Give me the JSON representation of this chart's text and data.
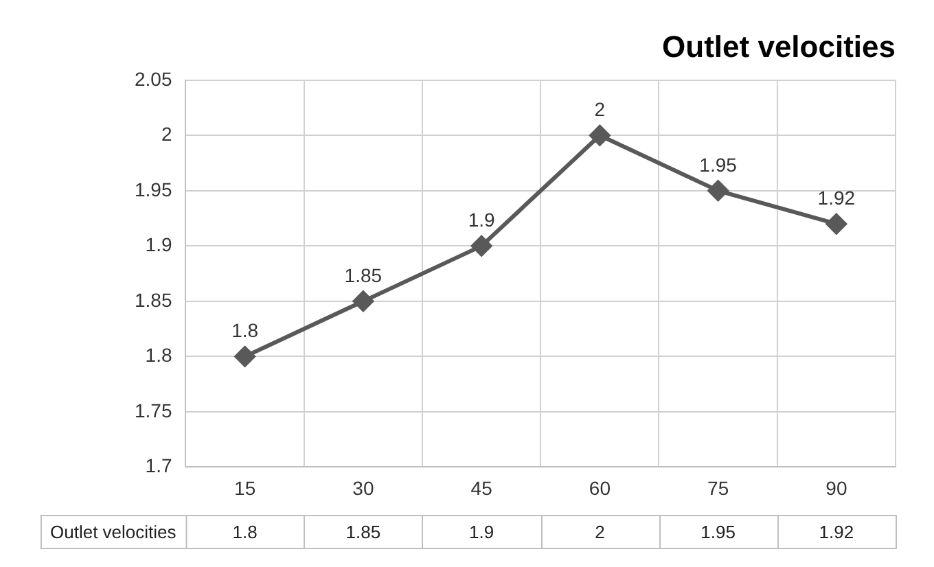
{
  "chart_data": {
    "type": "line",
    "title": "Outlet velocities",
    "categories": [
      "15",
      "30",
      "45",
      "60",
      "75",
      "90"
    ],
    "series": [
      {
        "name": "Outlet velocities",
        "color": "#595959",
        "values": [
          1.8,
          1.85,
          1.9,
          2,
          1.95,
          1.92
        ]
      }
    ],
    "annotations": [
      "1.8",
      "1.85",
      "1.9",
      "2",
      "1.95",
      "1.92"
    ],
    "ylim": [
      1.7,
      2.05
    ],
    "yticks": [
      1.7,
      1.75,
      1.8,
      1.85,
      1.9,
      1.95,
      2,
      2.05
    ],
    "grid": true,
    "marker": "diamond",
    "line_style": "solid",
    "data_labels": true
  }
}
